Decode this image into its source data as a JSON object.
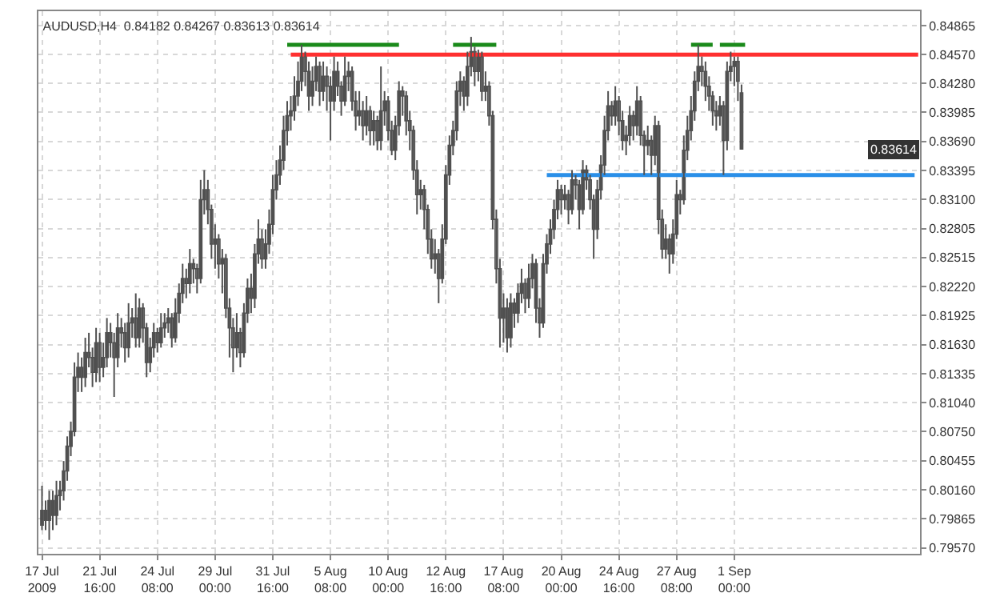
{
  "chart_data": {
    "type": "candlestick",
    "title": "AUDUSD,H4  0.84182 0.84267 0.83613 0.83614",
    "color": "#505050",
    "categories": [
      "17 Jul 2009",
      null,
      null,
      null,
      null,
      null,
      null,
      null,
      null,
      null,
      null,
      null,
      null,
      null,
      null,
      null,
      "21 Jul 16:00",
      null,
      null,
      null,
      null,
      null,
      null,
      null,
      null,
      null,
      null,
      null,
      null,
      null,
      null,
      null,
      "24 Jul 08:00",
      null,
      null,
      null,
      null,
      null,
      null,
      null,
      null,
      null,
      null,
      null,
      null,
      null,
      null,
      null,
      "29 Jul 00:00",
      null,
      null,
      null,
      null,
      null,
      null,
      null,
      null,
      null,
      null,
      null,
      null,
      null,
      null,
      null,
      "31 Jul 16:00",
      null,
      null,
      null,
      null,
      null,
      null,
      null,
      null,
      null,
      null,
      null,
      null,
      null,
      null,
      null,
      "5 Aug 08:00",
      null,
      null,
      null,
      null,
      null,
      null,
      null,
      null,
      null,
      null,
      null,
      null,
      null,
      null,
      null,
      "10 Aug 00:00",
      null,
      null,
      null,
      null,
      null,
      null,
      null,
      null,
      null,
      null,
      null,
      null,
      null,
      null,
      null,
      "12 Aug 16:00",
      null,
      null,
      null,
      null,
      null,
      null,
      null,
      null,
      null,
      null,
      null,
      null,
      null,
      null,
      null,
      "17 Aug 08:00",
      null,
      null,
      null,
      null,
      null,
      null,
      null,
      null,
      null,
      null,
      null,
      null,
      null,
      null,
      null,
      "20 Aug 00:00",
      null,
      null,
      null,
      null,
      null,
      null,
      null,
      null,
      null,
      null,
      null,
      null,
      null,
      null,
      null,
      "24 Aug 16:00",
      null,
      null,
      null,
      null,
      null,
      null,
      null,
      null,
      null,
      null,
      null,
      null,
      null,
      null,
      null,
      "27 Aug 08:00",
      null,
      null,
      null,
      null,
      null,
      null,
      null,
      null,
      null,
      null,
      null,
      null,
      null,
      null,
      null,
      "1 Sep 00:00",
      null,
      null,
      null,
      null,
      null,
      null,
      null,
      null,
      null,
      null,
      null,
      null,
      null,
      null,
      null,
      null,
      null,
      null,
      null,
      null,
      null,
      null,
      null,
      null,
      null,
      null,
      null,
      null,
      null,
      null,
      null,
      null,
      null,
      null,
      null,
      null,
      null,
      null,
      null,
      null,
      null,
      null,
      null,
      null,
      null,
      null,
      null,
      null,
      null,
      null,
      null
    ],
    "ohlc": [
      [
        0.798,
        0.802,
        0.7975,
        0.7995
      ],
      [
        0.7995,
        0.8005,
        0.7975,
        0.7985
      ],
      [
        0.7985,
        0.8015,
        0.7965,
        0.8005
      ],
      [
        0.8005,
        0.8015,
        0.7975,
        0.799
      ],
      [
        0.799,
        0.8025,
        0.798,
        0.801
      ],
      [
        0.801,
        0.8025,
        0.7995,
        0.8015
      ],
      [
        0.8015,
        0.8045,
        0.8005,
        0.8035
      ],
      [
        0.8035,
        0.807,
        0.8025,
        0.806
      ],
      [
        0.806,
        0.8085,
        0.805,
        0.8075
      ],
      [
        0.8075,
        0.8145,
        0.807,
        0.813
      ],
      [
        0.813,
        0.8155,
        0.8115,
        0.814
      ],
      [
        0.814,
        0.815,
        0.8115,
        0.813
      ],
      [
        0.813,
        0.817,
        0.812,
        0.8155
      ],
      [
        0.8155,
        0.8175,
        0.814,
        0.815
      ],
      [
        0.815,
        0.816,
        0.812,
        0.8135
      ],
      [
        0.8135,
        0.818,
        0.8125,
        0.8165
      ],
      [
        0.8165,
        0.8175,
        0.8125,
        0.814
      ],
      [
        0.814,
        0.8165,
        0.813,
        0.815
      ],
      [
        0.815,
        0.819,
        0.814,
        0.8175
      ],
      [
        0.8175,
        0.8185,
        0.815,
        0.8165
      ],
      [
        0.8165,
        0.8175,
        0.811,
        0.815
      ],
      [
        0.815,
        0.8195,
        0.814,
        0.818
      ],
      [
        0.818,
        0.819,
        0.816,
        0.8175
      ],
      [
        0.8175,
        0.8185,
        0.8145,
        0.816
      ],
      [
        0.816,
        0.8205,
        0.815,
        0.8185
      ],
      [
        0.8185,
        0.82,
        0.817,
        0.819
      ],
      [
        0.819,
        0.8215,
        0.816,
        0.817
      ],
      [
        0.817,
        0.821,
        0.816,
        0.82
      ],
      [
        0.82,
        0.8205,
        0.8165,
        0.818
      ],
      [
        0.818,
        0.8185,
        0.813,
        0.8145
      ],
      [
        0.8145,
        0.817,
        0.8135,
        0.816
      ],
      [
        0.816,
        0.8185,
        0.815,
        0.8175
      ],
      [
        0.8175,
        0.818,
        0.8155,
        0.8165
      ],
      [
        0.8165,
        0.8195,
        0.816,
        0.818
      ],
      [
        0.818,
        0.8195,
        0.817,
        0.8185
      ],
      [
        0.8185,
        0.82,
        0.8175,
        0.819
      ],
      [
        0.819,
        0.8195,
        0.816,
        0.817
      ],
      [
        0.817,
        0.821,
        0.8165,
        0.8195
      ],
      [
        0.8195,
        0.8225,
        0.8185,
        0.8215
      ],
      [
        0.8215,
        0.8245,
        0.8205,
        0.823
      ],
      [
        0.823,
        0.824,
        0.821,
        0.8225
      ],
      [
        0.8225,
        0.826,
        0.8215,
        0.8245
      ],
      [
        0.8245,
        0.825,
        0.8225,
        0.824
      ],
      [
        0.824,
        0.8245,
        0.8215,
        0.823
      ],
      [
        0.823,
        0.833,
        0.8225,
        0.831
      ],
      [
        0.831,
        0.834,
        0.8295,
        0.832
      ],
      [
        0.832,
        0.833,
        0.8285,
        0.83
      ],
      [
        0.83,
        0.8305,
        0.825,
        0.8265
      ],
      [
        0.8265,
        0.8285,
        0.824,
        0.827
      ],
      [
        0.827,
        0.8275,
        0.823,
        0.8245
      ],
      [
        0.8245,
        0.826,
        0.8215,
        0.825
      ],
      [
        0.825,
        0.8255,
        0.819,
        0.82
      ],
      [
        0.82,
        0.821,
        0.815,
        0.818
      ],
      [
        0.818,
        0.819,
        0.8135,
        0.816
      ],
      [
        0.816,
        0.8195,
        0.815,
        0.8175
      ],
      [
        0.8175,
        0.818,
        0.814,
        0.8155
      ],
      [
        0.8155,
        0.8205,
        0.815,
        0.8195
      ],
      [
        0.8195,
        0.823,
        0.8185,
        0.822
      ],
      [
        0.822,
        0.8235,
        0.8195,
        0.821
      ],
      [
        0.821,
        0.8265,
        0.82,
        0.8255
      ],
      [
        0.8255,
        0.829,
        0.8245,
        0.827
      ],
      [
        0.827,
        0.828,
        0.824,
        0.825
      ],
      [
        0.825,
        0.828,
        0.824,
        0.8265
      ],
      [
        0.8265,
        0.83,
        0.8255,
        0.8285
      ],
      [
        0.8285,
        0.8335,
        0.8275,
        0.832
      ],
      [
        0.832,
        0.835,
        0.831,
        0.8335
      ],
      [
        0.8335,
        0.8365,
        0.8325,
        0.835
      ],
      [
        0.835,
        0.8395,
        0.834,
        0.838
      ],
      [
        0.838,
        0.841,
        0.8365,
        0.8395
      ],
      [
        0.8395,
        0.8415,
        0.838,
        0.84
      ],
      [
        0.84,
        0.8435,
        0.839,
        0.8415
      ],
      [
        0.8415,
        0.845,
        0.8405,
        0.843
      ],
      [
        0.843,
        0.8467,
        0.842,
        0.8455
      ],
      [
        0.8455,
        0.846,
        0.8425,
        0.844
      ],
      [
        0.844,
        0.845,
        0.84,
        0.8415
      ],
      [
        0.8415,
        0.8445,
        0.8405,
        0.843
      ],
      [
        0.843,
        0.8455,
        0.842,
        0.8445
      ],
      [
        0.8445,
        0.845,
        0.8405,
        0.842
      ],
      [
        0.842,
        0.845,
        0.841,
        0.8435
      ],
      [
        0.8435,
        0.8445,
        0.84,
        0.8425
      ],
      [
        0.8425,
        0.8435,
        0.837,
        0.841
      ],
      [
        0.841,
        0.8455,
        0.84,
        0.844
      ],
      [
        0.844,
        0.845,
        0.8415,
        0.8425
      ],
      [
        0.8425,
        0.843,
        0.8395,
        0.841
      ],
      [
        0.841,
        0.8455,
        0.8405,
        0.8435
      ],
      [
        0.8435,
        0.845,
        0.842,
        0.844
      ],
      [
        0.844,
        0.8445,
        0.84,
        0.841
      ],
      [
        0.841,
        0.842,
        0.838,
        0.8395
      ],
      [
        0.8395,
        0.842,
        0.8385,
        0.84
      ],
      [
        0.84,
        0.841,
        0.837,
        0.8385
      ],
      [
        0.8385,
        0.8415,
        0.8375,
        0.84
      ],
      [
        0.84,
        0.8405,
        0.8365,
        0.838
      ],
      [
        0.838,
        0.84,
        0.8365,
        0.839
      ],
      [
        0.839,
        0.8395,
        0.836,
        0.837
      ],
      [
        0.837,
        0.8445,
        0.836,
        0.84
      ],
      [
        0.84,
        0.842,
        0.8385,
        0.841
      ],
      [
        0.841,
        0.8415,
        0.837,
        0.838
      ],
      [
        0.838,
        0.839,
        0.8355,
        0.836
      ],
      [
        0.836,
        0.8395,
        0.835,
        0.8385
      ],
      [
        0.8385,
        0.843,
        0.8375,
        0.842
      ],
      [
        0.842,
        0.8425,
        0.8395,
        0.8415
      ],
      [
        0.8415,
        0.842,
        0.8375,
        0.839
      ],
      [
        0.839,
        0.84,
        0.836,
        0.838
      ],
      [
        0.838,
        0.8385,
        0.833,
        0.834
      ],
      [
        0.834,
        0.835,
        0.8295,
        0.8315
      ],
      [
        0.8315,
        0.833,
        0.83,
        0.832
      ],
      [
        0.832,
        0.8325,
        0.828,
        0.83
      ],
      [
        0.83,
        0.8305,
        0.8255,
        0.827
      ],
      [
        0.827,
        0.828,
        0.824,
        0.825
      ],
      [
        0.825,
        0.827,
        0.8235,
        0.8255
      ],
      [
        0.8255,
        0.826,
        0.8205,
        0.823
      ],
      [
        0.823,
        0.8285,
        0.8225,
        0.827
      ],
      [
        0.827,
        0.8345,
        0.8265,
        0.8335
      ],
      [
        0.8335,
        0.8375,
        0.8325,
        0.8365
      ],
      [
        0.8365,
        0.839,
        0.8355,
        0.838
      ],
      [
        0.838,
        0.843,
        0.837,
        0.842
      ],
      [
        0.842,
        0.844,
        0.8405,
        0.843
      ],
      [
        0.843,
        0.8435,
        0.84,
        0.8415
      ],
      [
        0.8415,
        0.846,
        0.8405,
        0.8445
      ],
      [
        0.8445,
        0.8475,
        0.8435,
        0.846
      ],
      [
        0.846,
        0.8465,
        0.8425,
        0.844
      ],
      [
        0.844,
        0.8462,
        0.843,
        0.8455
      ],
      [
        0.8455,
        0.846,
        0.841,
        0.842
      ],
      [
        0.842,
        0.844,
        0.841,
        0.8425
      ],
      [
        0.8425,
        0.843,
        0.8385,
        0.8395
      ],
      [
        0.8395,
        0.84,
        0.828,
        0.829
      ],
      [
        0.829,
        0.83,
        0.8225,
        0.824
      ],
      [
        0.824,
        0.825,
        0.816,
        0.819
      ],
      [
        0.819,
        0.8215,
        0.8165,
        0.82
      ],
      [
        0.82,
        0.821,
        0.8155,
        0.817
      ],
      [
        0.817,
        0.8215,
        0.816,
        0.8205
      ],
      [
        0.8205,
        0.821,
        0.818,
        0.8195
      ],
      [
        0.8195,
        0.8225,
        0.8185,
        0.8215
      ],
      [
        0.8215,
        0.824,
        0.8205,
        0.8225
      ],
      [
        0.8225,
        0.823,
        0.8195,
        0.821
      ],
      [
        0.821,
        0.8245,
        0.82,
        0.823
      ],
      [
        0.823,
        0.8255,
        0.822,
        0.8245
      ],
      [
        0.8245,
        0.825,
        0.8185,
        0.82
      ],
      [
        0.82,
        0.821,
        0.817,
        0.8185
      ],
      [
        0.8185,
        0.8255,
        0.818,
        0.8245
      ],
      [
        0.8245,
        0.8275,
        0.8235,
        0.8265
      ],
      [
        0.8265,
        0.829,
        0.8255,
        0.828
      ],
      [
        0.828,
        0.831,
        0.827,
        0.83
      ],
      [
        0.83,
        0.833,
        0.829,
        0.832
      ],
      [
        0.832,
        0.8325,
        0.8295,
        0.831
      ],
      [
        0.831,
        0.8325,
        0.83,
        0.8315
      ],
      [
        0.8315,
        0.832,
        0.8285,
        0.83
      ],
      [
        0.83,
        0.834,
        0.8295,
        0.833
      ],
      [
        0.833,
        0.8335,
        0.831,
        0.8325
      ],
      [
        0.8325,
        0.833,
        0.828,
        0.83
      ],
      [
        0.83,
        0.835,
        0.8295,
        0.834
      ],
      [
        0.834,
        0.8345,
        0.832,
        0.833
      ],
      [
        0.833,
        0.8335,
        0.83,
        0.831
      ],
      [
        0.831,
        0.8315,
        0.825,
        0.828
      ],
      [
        0.828,
        0.833,
        0.827,
        0.832
      ],
      [
        0.832,
        0.8355,
        0.831,
        0.8345
      ],
      [
        0.8345,
        0.8395,
        0.8335,
        0.838
      ],
      [
        0.838,
        0.842,
        0.837,
        0.8405
      ],
      [
        0.8405,
        0.841,
        0.8385,
        0.8395
      ],
      [
        0.8395,
        0.8425,
        0.8385,
        0.841
      ],
      [
        0.841,
        0.8415,
        0.8375,
        0.839
      ],
      [
        0.839,
        0.84,
        0.836,
        0.837
      ],
      [
        0.837,
        0.8385,
        0.8355,
        0.8375
      ],
      [
        0.8375,
        0.8405,
        0.8365,
        0.8395
      ],
      [
        0.8395,
        0.84,
        0.837,
        0.8385
      ],
      [
        0.8385,
        0.8425,
        0.8375,
        0.841
      ],
      [
        0.841,
        0.8415,
        0.8365,
        0.8375
      ],
      [
        0.8375,
        0.838,
        0.8335,
        0.8365
      ],
      [
        0.8365,
        0.8385,
        0.8355,
        0.837
      ],
      [
        0.837,
        0.8375,
        0.8335,
        0.8355
      ],
      [
        0.8355,
        0.8395,
        0.8345,
        0.8385
      ],
      [
        0.8385,
        0.839,
        0.8275,
        0.829
      ],
      [
        0.829,
        0.83,
        0.825,
        0.826
      ],
      [
        0.826,
        0.8285,
        0.825,
        0.827
      ],
      [
        0.827,
        0.8275,
        0.8235,
        0.8255
      ],
      [
        0.8255,
        0.829,
        0.8245,
        0.8275
      ],
      [
        0.8275,
        0.833,
        0.827,
        0.8315
      ],
      [
        0.8315,
        0.832,
        0.8295,
        0.831
      ],
      [
        0.831,
        0.8375,
        0.8305,
        0.836
      ],
      [
        0.836,
        0.8395,
        0.835,
        0.838
      ],
      [
        0.838,
        0.8415,
        0.837,
        0.84
      ],
      [
        0.84,
        0.844,
        0.839,
        0.843
      ],
      [
        0.843,
        0.8467,
        0.842,
        0.8445
      ],
      [
        0.8445,
        0.8455,
        0.8425,
        0.844
      ],
      [
        0.844,
        0.845,
        0.841,
        0.8425
      ],
      [
        0.8425,
        0.8435,
        0.84,
        0.8415
      ],
      [
        0.8415,
        0.842,
        0.8385,
        0.84
      ],
      [
        0.84,
        0.841,
        0.838,
        0.8395
      ],
      [
        0.8395,
        0.8415,
        0.8385,
        0.8405
      ],
      [
        0.8405,
        0.841,
        0.8335,
        0.837
      ],
      [
        0.837,
        0.845,
        0.836,
        0.844
      ],
      [
        0.844,
        0.846,
        0.843,
        0.8445
      ],
      [
        0.8445,
        0.8455,
        0.8425,
        0.845
      ],
      [
        0.845,
        0.8455,
        0.841,
        0.843
      ],
      [
        0.84182,
        0.84267,
        0.83613,
        0.83614
      ],
      null,
      null,
      null,
      null,
      null,
      null,
      null,
      null,
      null,
      null,
      null,
      null,
      null,
      null,
      null,
      null,
      null,
      null,
      null,
      null,
      null,
      null,
      null,
      null,
      null,
      null,
      null,
      null,
      null,
      null,
      null,
      null,
      null,
      null,
      null,
      null,
      null,
      null,
      null,
      null,
      null,
      null,
      null,
      null,
      null,
      null,
      null,
      null,
      null
    ],
    "series": [
      {
        "type": "line",
        "color": "#1a8a1a",
        "values": [
          null,
          null,
          null,
          null,
          null,
          null,
          null,
          null,
          null,
          null,
          null,
          null,
          null,
          null,
          null,
          null,
          null,
          null,
          null,
          null,
          null,
          null,
          null,
          null,
          null,
          null,
          null,
          null,
          null,
          null,
          null,
          null,
          null,
          null,
          null,
          null,
          null,
          null,
          null,
          null,
          null,
          null,
          null,
          null,
          null,
          null,
          null,
          null,
          null,
          null,
          null,
          null,
          null,
          null,
          null,
          null,
          null,
          null,
          null,
          null,
          null,
          null,
          null,
          null,
          null,
          null,
          null,
          null,
          0.8467,
          0.8467,
          0.8467,
          0.8467,
          0.8467,
          0.8467,
          0.8467,
          0.8467,
          0.8467,
          0.8467,
          0.8467,
          0.8467,
          0.8467,
          0.8467,
          0.8467,
          0.8467,
          0.8467,
          0.8467,
          0.8467,
          0.8467,
          0.8467,
          0.8467,
          0.8467,
          0.8467,
          0.8467,
          0.8467,
          0.8467,
          0.8467,
          0.8467,
          0.8467,
          0.8467,
          0.8467,
          null,
          null,
          null,
          null,
          null,
          null,
          null,
          null,
          null,
          null,
          null,
          null,
          null,
          null,
          0.8467,
          0.8467,
          0.8467,
          0.8467,
          0.8467,
          0.8467,
          0.8467,
          0.8467,
          0.8467,
          0.8467,
          0.8467,
          0.8467,
          0.8467,
          null,
          null,
          null,
          null,
          null,
          null,
          null,
          null,
          null,
          null,
          null,
          null,
          null,
          null,
          null,
          null,
          null,
          null,
          null,
          null,
          null,
          null,
          null,
          null,
          null,
          null,
          null,
          null,
          null,
          null,
          null,
          null,
          null,
          null,
          null,
          null,
          null,
          null,
          null,
          null,
          null,
          null,
          null,
          null,
          null,
          null,
          null,
          null,
          null,
          null,
          null,
          null,
          null,
          0.8467,
          0.8467,
          0.8467,
          0.8467,
          0.8467,
          0.8467,
          0.8467,
          null,
          0.8467,
          0.8467,
          0.8467,
          0.8467,
          0.8467,
          0.8467,
          0.8467,
          0.8467,
          null,
          null,
          null,
          null,
          null,
          null,
          null,
          null,
          null,
          null,
          null,
          null,
          null,
          null,
          null,
          null,
          null,
          null,
          null,
          null,
          null,
          null,
          null,
          null,
          null,
          null,
          null,
          null,
          null,
          null,
          null,
          null,
          null,
          null,
          null,
          null,
          null,
          null,
          null,
          null,
          null,
          null,
          null,
          null,
          null,
          null,
          null,
          null
        ]
      },
      {
        "type": "line",
        "color": "#ff3030",
        "values": [
          null,
          null,
          null,
          null,
          null,
          null,
          null,
          null,
          null,
          null,
          null,
          null,
          null,
          null,
          null,
          null,
          null,
          null,
          null,
          null,
          null,
          null,
          null,
          null,
          null,
          null,
          null,
          null,
          null,
          null,
          null,
          null,
          null,
          null,
          null,
          null,
          null,
          null,
          null,
          null,
          null,
          null,
          null,
          null,
          null,
          null,
          null,
          null,
          null,
          null,
          null,
          null,
          null,
          null,
          null,
          null,
          null,
          null,
          null,
          null,
          null,
          null,
          null,
          null,
          null,
          null,
          null,
          null,
          null,
          0.8457,
          0.8457,
          0.8457,
          0.8457,
          0.8457,
          0.8457,
          0.8457,
          0.8457,
          0.8457,
          0.8457,
          0.8457,
          0.8457,
          0.8457,
          0.8457,
          0.8457,
          0.8457,
          0.8457,
          0.8457,
          0.8457,
          0.8457,
          0.8457,
          0.8457,
          0.8457,
          0.8457,
          0.8457,
          0.8457,
          0.8457,
          0.8457,
          0.8457,
          0.8457,
          0.8457,
          0.8457,
          0.8457,
          0.8457,
          0.8457,
          0.8457,
          0.8457,
          0.8457,
          0.8457,
          0.8457,
          0.8457,
          0.8457,
          0.8457,
          0.8457,
          0.8457,
          0.8457,
          0.8457,
          0.8457,
          0.8457,
          0.8457,
          0.8457,
          0.8457,
          0.8457,
          0.8457,
          0.8457,
          0.8457,
          0.8457,
          0.8457,
          0.8457,
          0.8457,
          0.8457,
          0.8457,
          0.8457,
          0.8457,
          0.8457,
          0.8457,
          0.8457,
          0.8457,
          0.8457,
          0.8457,
          0.8457,
          0.8457,
          0.8457,
          0.8457,
          0.8457,
          0.8457,
          0.8457,
          0.8457,
          0.8457,
          0.8457,
          0.8457,
          0.8457,
          0.8457,
          0.8457,
          0.8457,
          0.8457,
          0.8457,
          0.8457,
          0.8457,
          0.8457,
          0.8457,
          0.8457,
          0.8457,
          0.8457,
          0.8457,
          0.8457,
          0.8457,
          0.8457,
          0.8457,
          0.8457,
          0.8457,
          0.8457,
          0.8457,
          0.8457,
          0.8457,
          0.8457,
          0.8457,
          0.8457,
          0.8457,
          0.8457,
          0.8457,
          0.8457,
          0.8457,
          0.8457,
          0.8457,
          0.8457,
          0.8457,
          0.8457,
          0.8457,
          0.8457,
          0.8457,
          0.8457,
          0.8457,
          0.8457,
          0.8457,
          0.8457,
          0.8457,
          0.8457,
          0.8457,
          0.8457,
          0.8457,
          0.8457,
          0.8457,
          0.8457,
          0.8457,
          0.8457,
          0.8457,
          0.8457,
          0.8457,
          0.8457,
          0.8457,
          0.8457,
          0.8457,
          0.8457,
          0.8457,
          0.8457,
          0.8457,
          0.8457,
          0.8457,
          0.8457,
          0.8457,
          0.8457,
          0.8457,
          0.8457,
          0.8457,
          0.8457,
          0.8457,
          0.8457,
          0.8457,
          0.8457,
          0.8457,
          0.8457,
          0.8457,
          0.8457,
          0.8457,
          0.8457,
          0.8457,
          0.8457,
          0.8457,
          0.8457,
          0.8457,
          0.8457,
          0.8457,
          0.8457,
          0.8457
        ]
      },
      {
        "type": "line",
        "color": "#2a8fe8",
        "values": [
          null,
          null,
          null,
          null,
          null,
          null,
          null,
          null,
          null,
          null,
          null,
          null,
          null,
          null,
          null,
          null,
          null,
          null,
          null,
          null,
          null,
          null,
          null,
          null,
          null,
          null,
          null,
          null,
          null,
          null,
          null,
          null,
          null,
          null,
          null,
          null,
          null,
          null,
          null,
          null,
          null,
          null,
          null,
          null,
          null,
          null,
          null,
          null,
          null,
          null,
          null,
          null,
          null,
          null,
          null,
          null,
          null,
          null,
          null,
          null,
          null,
          null,
          null,
          null,
          null,
          null,
          null,
          null,
          null,
          null,
          null,
          null,
          null,
          null,
          null,
          null,
          null,
          null,
          null,
          null,
          null,
          null,
          null,
          null,
          null,
          null,
          null,
          null,
          null,
          null,
          null,
          null,
          null,
          null,
          null,
          null,
          null,
          null,
          null,
          null,
          null,
          null,
          null,
          null,
          null,
          null,
          null,
          null,
          null,
          null,
          null,
          null,
          null,
          null,
          null,
          null,
          null,
          null,
          null,
          null,
          null,
          null,
          null,
          null,
          null,
          null,
          null,
          null,
          null,
          null,
          null,
          null,
          null,
          null,
          null,
          null,
          null,
          null,
          null,
          null,
          0.8335,
          0.8335,
          0.8335,
          0.8335,
          0.8335,
          0.8335,
          0.8335,
          0.8335,
          0.8335,
          0.8335,
          0.8335,
          0.8335,
          0.8335,
          0.8335,
          0.8335,
          0.8335,
          0.8335,
          0.8335,
          0.8335,
          0.8335,
          0.8335,
          0.8335,
          0.8335,
          0.8335,
          0.8335,
          0.8335,
          0.8335,
          0.8335,
          0.8335,
          0.8335,
          0.8335,
          0.8335,
          0.8335,
          0.8335,
          0.8335,
          0.8335,
          0.8335,
          0.8335,
          0.8335,
          0.8335,
          0.8335,
          0.8335,
          0.8335,
          0.8335,
          0.8335,
          0.8335,
          0.8335,
          0.8335,
          0.8335,
          0.8335,
          0.8335,
          0.8335,
          0.8335,
          0.8335,
          0.8335,
          0.8335,
          0.8335,
          0.8335,
          0.8335,
          0.8335,
          0.8335,
          0.8335,
          0.8335,
          0.8335,
          0.8335,
          0.8335,
          0.8335,
          0.8335,
          0.8335,
          0.8335,
          0.8335,
          0.8335,
          0.8335,
          0.8335,
          0.8335,
          0.8335,
          0.8335,
          0.8335,
          0.8335,
          0.8335,
          0.8335,
          0.8335,
          0.8335,
          0.8335,
          0.8335,
          0.8335,
          0.8335,
          0.8335,
          0.8335,
          0.8335,
          0.8335,
          0.8335,
          0.8335,
          0.8335,
          0.8335,
          0.8335,
          0.8335,
          0.8335,
          0.8335,
          0.8335,
          0.8335,
          0.8335,
          0.8335,
          null
        ]
      }
    ],
    "annotations": [
      "0.83614"
    ],
    "ylim": [
      0.7951,
      0.8501
    ],
    "yticks": [
      0.84865,
      {
        "value": 0.8457,
        "label": "0.84570"
      },
      {
        "value": 0.8428,
        "label": "0.84280"
      },
      0.83985,
      {
        "value": 0.8369,
        "label": "0.83690"
      },
      0.83395,
      {
        "value": 0.831,
        "label": "0.83100"
      },
      0.82805,
      0.82515,
      {
        "value": 0.8222,
        "label": "0.82220"
      },
      0.81925,
      {
        "value": 0.8163,
        "label": "0.81630"
      },
      0.81335,
      {
        "value": 0.8104,
        "label": "0.81040"
      },
      {
        "value": 0.8075,
        "label": "0.80750"
      },
      0.80455,
      {
        "value": 0.8016,
        "label": "0.80160"
      },
      0.79865,
      {
        "value": 0.7957,
        "label": "0.79570"
      }
    ],
    "grid": true
  }
}
